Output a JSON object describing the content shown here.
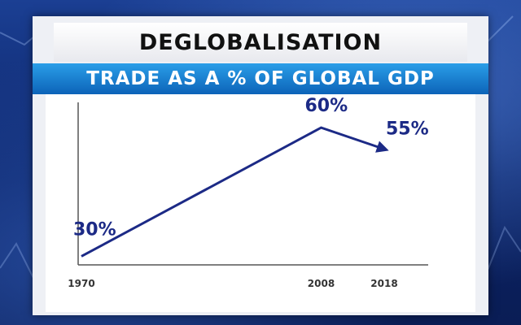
{
  "header": {
    "title": "DEGLOBALISATION",
    "subtitle": "TRADE AS A % OF GLOBAL GDP"
  },
  "chart_data": {
    "type": "line",
    "title": "DEGLOBALISATION",
    "subtitle": "TRADE AS A % OF GLOBAL GDP",
    "xlabel": "",
    "ylabel": "",
    "x": [
      1970,
      2008,
      2018
    ],
    "x_tick_labels": [
      "1970",
      "2008",
      "2018"
    ],
    "series": [
      {
        "values": [
          30,
          60,
          55
        ],
        "labels": [
          "30%",
          "60%",
          "55%"
        ]
      }
    ],
    "ylim": [
      28,
      64
    ],
    "grid": false,
    "line_color": "#1c2a86"
  }
}
